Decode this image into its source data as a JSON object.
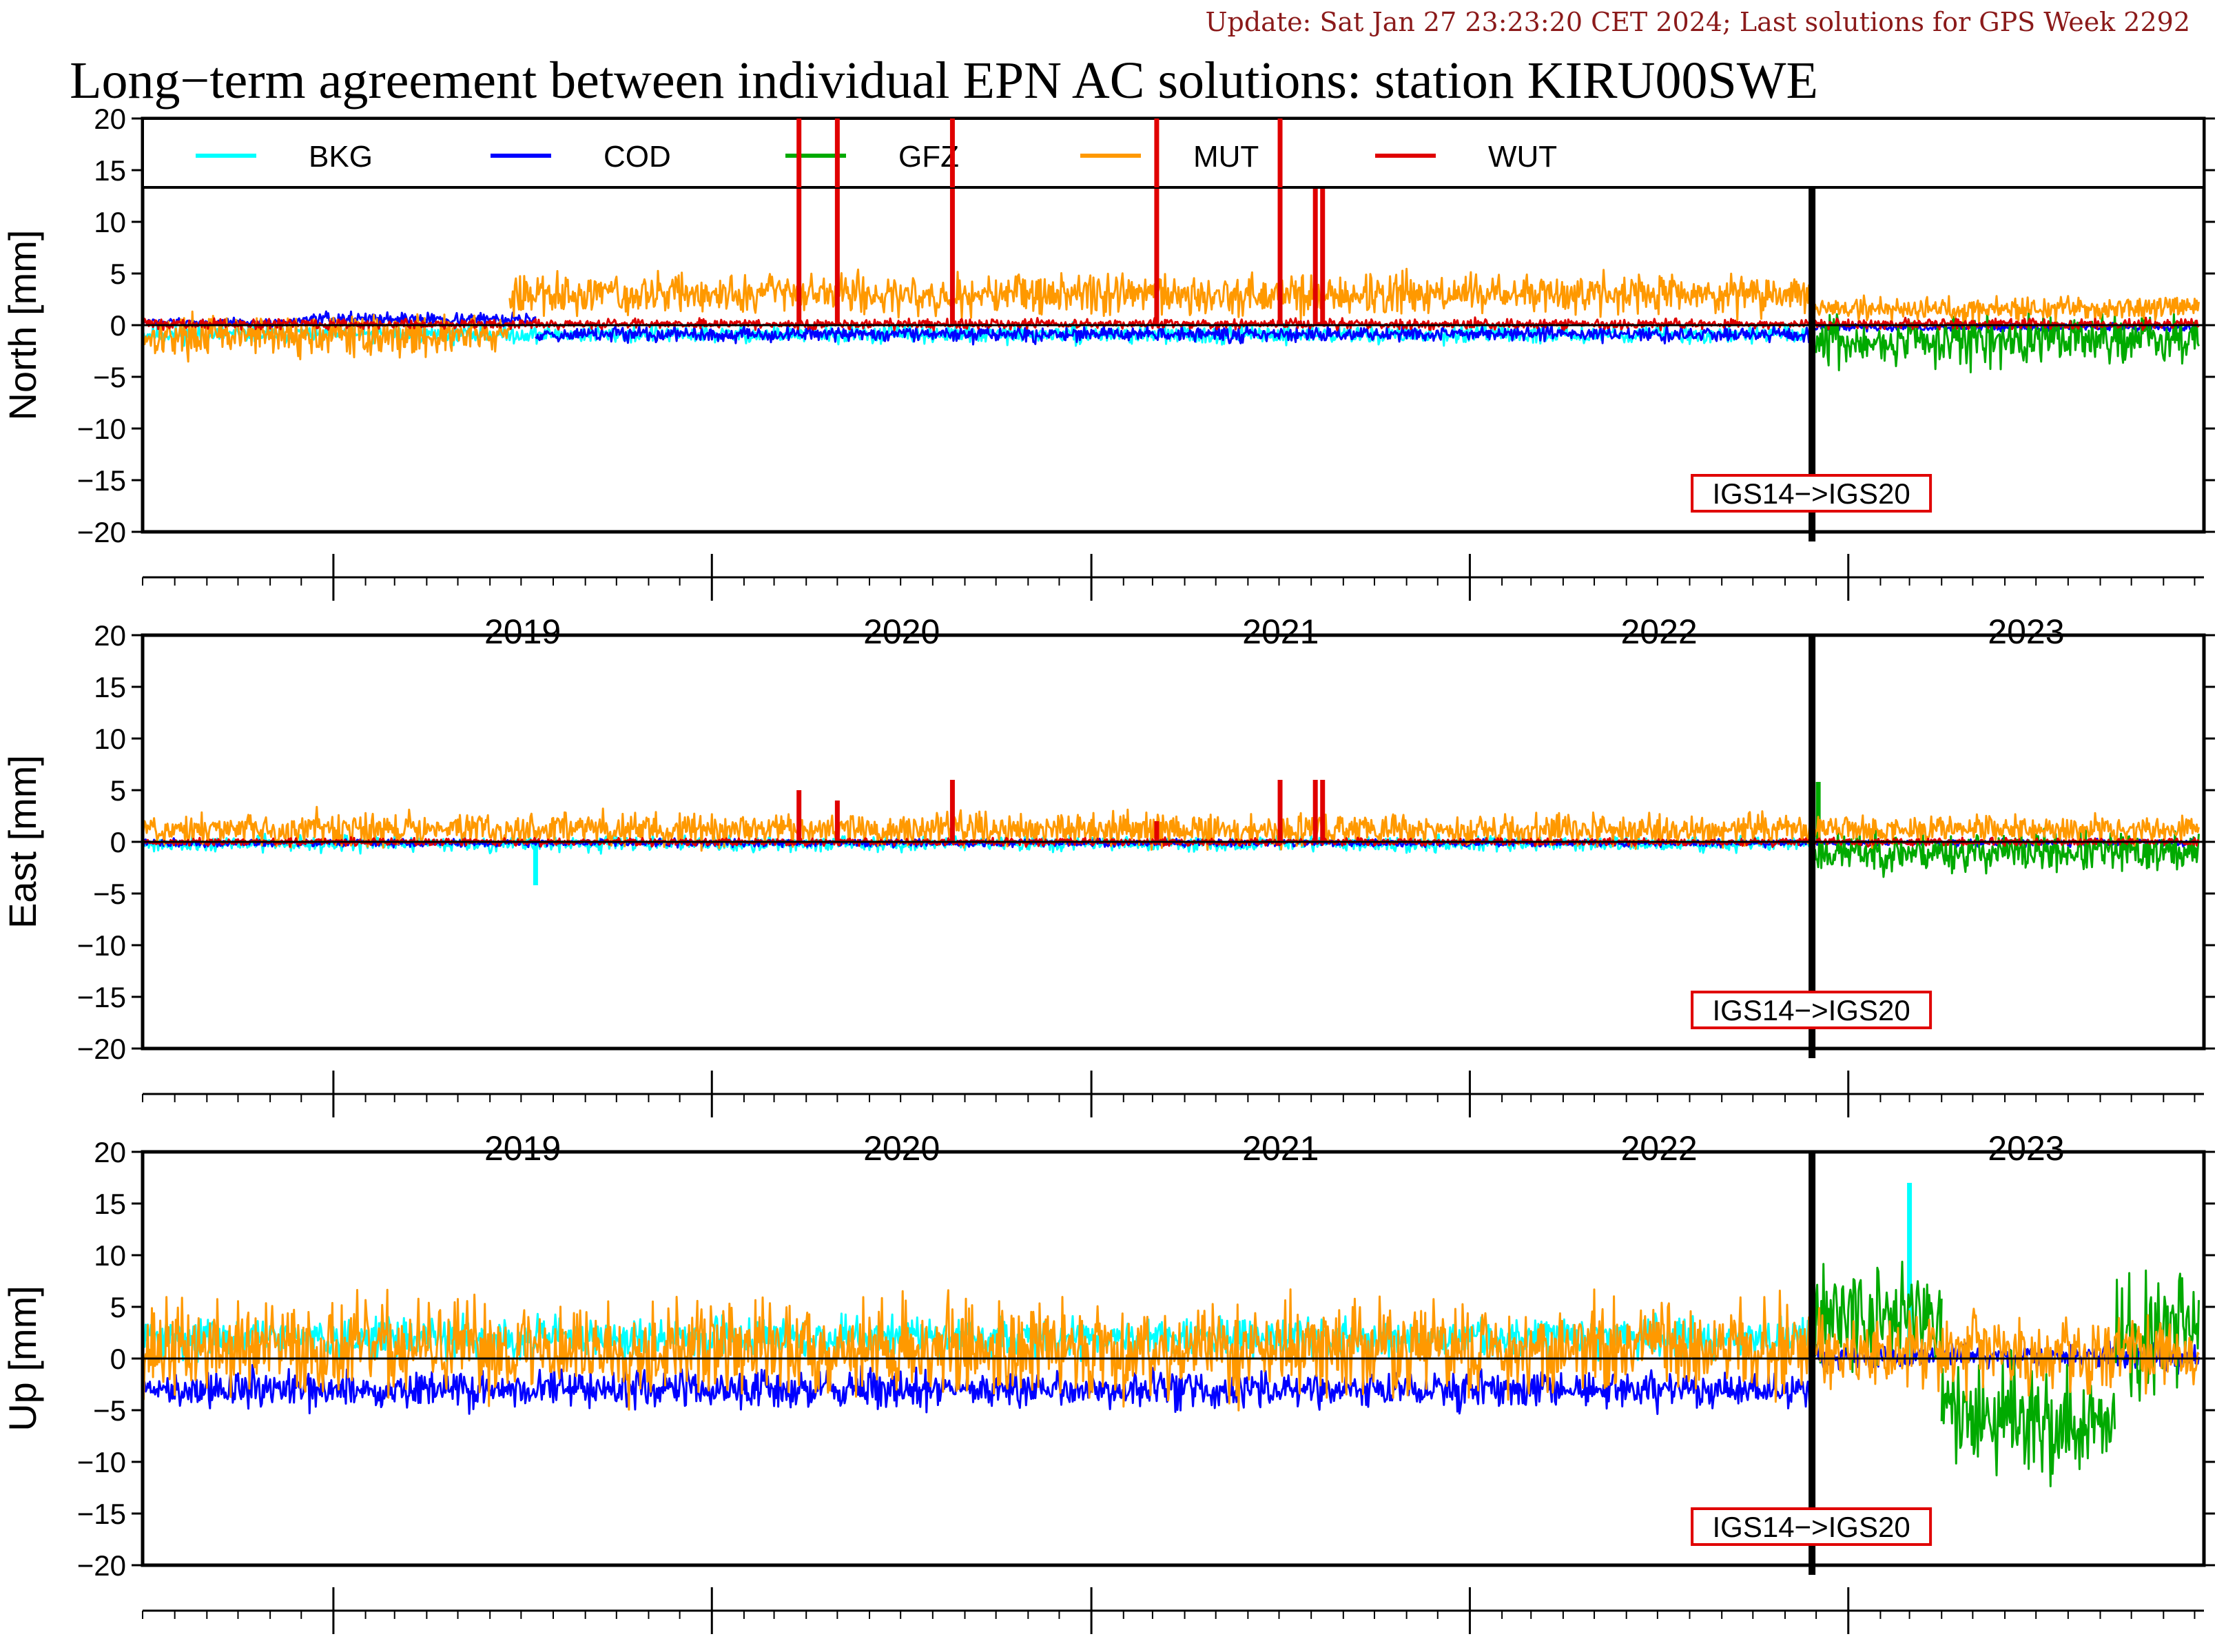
{
  "update_text": "Update: Sat Jan 27 23:23:20 CET 2024; Last solutions for GPS Week 2292",
  "title": "Long−term agreement between individual EPN AC solutions: station KIRU00SWE",
  "chart_data": {
    "type": "line",
    "x_range": [
      "2018-07-01",
      "2023-12-10"
    ],
    "year_labels": [
      "2019",
      "2020",
      "2021",
      "2022",
      "2023"
    ],
    "ylim": [
      -20,
      20
    ],
    "y_ticks": [
      20,
      15,
      10,
      5,
      0,
      -5,
      -10,
      -15,
      -20
    ],
    "reference_frame_change": {
      "date": "2022-11-27",
      "label": "IGS14−>IGS20"
    },
    "legend": [
      {
        "name": "BKG",
        "color": "#00ffff"
      },
      {
        "name": "COD",
        "color": "#0000ff"
      },
      {
        "name": "GFZ",
        "color": "#00aa00"
      },
      {
        "name": "MUT",
        "color": "#ff9900"
      },
      {
        "name": "WUT",
        "color": "#e00000"
      }
    ],
    "panels": [
      {
        "ylabel": "North [mm]",
        "legend_inside": true,
        "series": [
          {
            "name": "BKG",
            "color": "#00ffff",
            "segments": [
              {
                "start": "2018-07-01",
                "end": "2022-11-27",
                "level": -0.9,
                "amp": 0.7,
                "seed": 11
              }
            ]
          },
          {
            "name": "COD",
            "color": "#0000ff",
            "segments": [
              {
                "start": "2018-07-01",
                "end": "2018-12-01",
                "level": 0.3,
                "amp": 0.3,
                "seed": 12
              },
              {
                "start": "2018-12-01",
                "end": "2019-07-15",
                "level": 0.6,
                "amp": 0.5,
                "seed": 13
              },
              {
                "start": "2019-07-15",
                "end": "2022-11-27",
                "level": -0.9,
                "amp": 0.6,
                "seed": 14
              },
              {
                "start": "2022-11-27",
                "end": "2023-12-05",
                "level": -0.2,
                "amp": 0.3,
                "seed": 15
              }
            ]
          },
          {
            "name": "GFZ",
            "color": "#00aa00",
            "segments": [
              {
                "start": "2022-11-27",
                "end": "2023-12-05",
                "level": -1.5,
                "amp": 2.0,
                "seed": 16
              }
            ]
          },
          {
            "name": "MUT",
            "color": "#ff9900",
            "segments": [
              {
                "start": "2018-07-01",
                "end": "2019-06-20",
                "level": -1.0,
                "amp": 1.6,
                "seed": 17
              },
              {
                "start": "2019-06-20",
                "end": "2022-11-27",
                "level": 3.0,
                "amp": 1.6,
                "seed": 18
              },
              {
                "start": "2022-11-27",
                "end": "2023-12-05",
                "level": 1.6,
                "amp": 1.0,
                "seed": 19
              }
            ]
          },
          {
            "name": "WUT",
            "color": "#e00000",
            "segments": [
              {
                "start": "2018-07-01",
                "end": "2023-12-05",
                "level": 0.1,
                "amp": 0.4,
                "seed": 20
              }
            ],
            "spikes": [
              {
                "date": "2020-03-25",
                "value": 20
              },
              {
                "date": "2020-05-01",
                "value": 20
              },
              {
                "date": "2020-08-20",
                "value": 20
              },
              {
                "date": "2021-03-05",
                "value": 20
              },
              {
                "date": "2021-07-02",
                "value": 20
              },
              {
                "date": "2021-08-05",
                "value": 14
              },
              {
                "date": "2021-08-12",
                "value": 14
              }
            ]
          }
        ]
      },
      {
        "ylabel": "East [mm]",
        "legend_inside": false,
        "series": [
          {
            "name": "BKG",
            "color": "#00ffff",
            "segments": [
              {
                "start": "2018-07-01",
                "end": "2022-11-27",
                "level": -0.2,
                "amp": 0.6,
                "seed": 21
              }
            ],
            "spikes": [
              {
                "date": "2019-07-15",
                "value": -4.2
              }
            ]
          },
          {
            "name": "COD",
            "color": "#0000ff",
            "segments": [
              {
                "start": "2018-07-01",
                "end": "2023-12-05",
                "level": -0.1,
                "amp": 0.3,
                "seed": 22
              }
            ]
          },
          {
            "name": "GFZ",
            "color": "#00aa00",
            "segments": [
              {
                "start": "2022-11-27",
                "end": "2023-12-05",
                "level": -1.0,
                "amp": 1.6,
                "seed": 23
              }
            ],
            "spikes": [
              {
                "date": "2022-12-03",
                "value": 5.8
              }
            ]
          },
          {
            "name": "MUT",
            "color": "#ff9900",
            "segments": [
              {
                "start": "2018-07-01",
                "end": "2022-11-27",
                "level": 1.2,
                "amp": 1.3,
                "seed": 24
              },
              {
                "start": "2022-11-27",
                "end": "2023-12-05",
                "level": 1.2,
                "amp": 1.1,
                "seed": 25
              }
            ]
          },
          {
            "name": "WUT",
            "color": "#e00000",
            "segments": [
              {
                "start": "2018-07-01",
                "end": "2023-12-05",
                "level": 0.0,
                "amp": 0.3,
                "seed": 26
              }
            ],
            "spikes": [
              {
                "date": "2020-03-25",
                "value": 5
              },
              {
                "date": "2020-05-01",
                "value": 4
              },
              {
                "date": "2020-08-20",
                "value": 6
              },
              {
                "date": "2021-03-05",
                "value": 2
              },
              {
                "date": "2021-07-02",
                "value": 6
              },
              {
                "date": "2021-08-05",
                "value": 6
              },
              {
                "date": "2021-08-12",
                "value": 6
              }
            ]
          }
        ]
      },
      {
        "ylabel": "Up [mm]",
        "legend_inside": false,
        "series": [
          {
            "name": "BKG",
            "color": "#00ffff",
            "segments": [
              {
                "start": "2018-07-01",
                "end": "2022-11-27",
                "level": 2.0,
                "amp": 1.6,
                "seed": 31
              }
            ],
            "spikes": [
              {
                "date": "2023-03-01",
                "value": 17
              }
            ]
          },
          {
            "name": "COD",
            "color": "#0000ff",
            "segments": [
              {
                "start": "2018-07-01",
                "end": "2022-11-27",
                "level": -3.0,
                "amp": 1.5,
                "seed": 32
              },
              {
                "start": "2022-11-27",
                "end": "2023-12-05",
                "level": 0.2,
                "amp": 1.0,
                "seed": 33
              }
            ]
          },
          {
            "name": "GFZ",
            "color": "#00aa00",
            "segments": [
              {
                "start": "2022-11-27",
                "end": "2023-04-01",
                "level": 4.0,
                "amp": 4.5,
                "seed": 34
              },
              {
                "start": "2023-04-01",
                "end": "2023-09-15",
                "level": -6.0,
                "amp": 4.5,
                "seed": 35
              },
              {
                "start": "2023-09-15",
                "end": "2023-12-05",
                "level": 3.0,
                "amp": 5.0,
                "seed": 36
              }
            ]
          },
          {
            "name": "MUT",
            "color": "#ff9900",
            "segments": [
              {
                "start": "2018-07-01",
                "end": "2022-11-27",
                "level": 1.0,
                "amp": 3.8,
                "seed": 37
              },
              {
                "start": "2022-11-27",
                "end": "2023-12-05",
                "level": 0.5,
                "amp": 3.0,
                "seed": 38
              }
            ]
          }
        ]
      }
    ]
  }
}
